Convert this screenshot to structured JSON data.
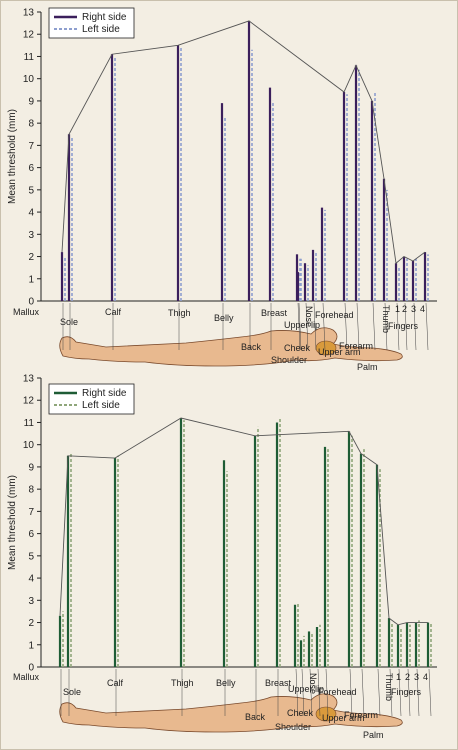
{
  "chart_data": [
    {
      "type": "bar",
      "ylabel": "Mean threshold (mm)",
      "ylim": [
        0,
        13
      ],
      "yticks": [
        0,
        1,
        2,
        3,
        4,
        5,
        6,
        7,
        8,
        9,
        10,
        11,
        12,
        13
      ],
      "grid": false,
      "legend": "top-left",
      "colors": {
        "right": "#3b1f5c",
        "left": "#8e9fcf"
      },
      "series": [
        {
          "name": "Right side",
          "style": "solid"
        },
        {
          "name": "Left side",
          "style": "dashed"
        }
      ],
      "categories": [
        "Mallux",
        "Sole",
        "Calf",
        "Thigh",
        "Belly",
        "Back",
        "Breast",
        "Upper lip",
        "Cheek",
        "Nose",
        "Shoulder",
        "Upper arm",
        "Forehead",
        "Forearm",
        "Palm",
        "Thumb",
        "1",
        "2",
        "3",
        "4"
      ],
      "right_values": [
        2.2,
        7.5,
        11.1,
        11.5,
        8.9,
        12.6,
        9.6,
        2.1,
        1.7,
        2.3,
        1.3,
        4.2,
        9.4,
        10.6,
        9.0,
        5.5,
        1.7,
        2.0,
        1.8,
        2.2
      ],
      "left_values": [
        2.0,
        7.4,
        11.0,
        11.4,
        8.3,
        11.3,
        9.0,
        1.9,
        1.6,
        2.2,
        1.9,
        4.1,
        9.3,
        10.4,
        9.4,
        5.0,
        1.5,
        1.9,
        1.9,
        2.1
      ],
      "labels": {
        "mallux": "Mallux",
        "sole": "Sole",
        "calf": "Calf",
        "thigh": "Thigh",
        "belly": "Belly",
        "breast": "Breast",
        "back": "Back",
        "upper_lip": "Upper lip",
        "nose": "Nose",
        "forehead": "Forehead",
        "cheek": "Cheek",
        "upper_arm": "Upper arm",
        "shoulder": "Shoulder",
        "forearm": "Forearm",
        "palm": "Palm",
        "thumb": "Thumb",
        "fingers": "Fingers",
        "f1": "1",
        "f2": "2",
        "f3": "3",
        "f4": "4"
      }
    },
    {
      "type": "bar",
      "ylabel": "Mean threshold (mm)",
      "ylim": [
        0,
        13
      ],
      "yticks": [
        0,
        1,
        2,
        3,
        4,
        5,
        6,
        7,
        8,
        9,
        10,
        11,
        12,
        13
      ],
      "grid": false,
      "legend": "top-left",
      "colors": {
        "right": "#1e5c35",
        "left": "#8fa67a"
      },
      "series": [
        {
          "name": "Right side",
          "style": "solid"
        },
        {
          "name": "Left side",
          "style": "dashed"
        }
      ],
      "categories": [
        "Mallux",
        "Sole",
        "Calf",
        "Thigh",
        "Belly",
        "Back",
        "Breast",
        "Upper lip",
        "Cheek",
        "Nose",
        "Shoulder",
        "Upper arm",
        "Forehead",
        "Forearm",
        "Palm",
        "Thumb",
        "1",
        "2",
        "3",
        "4"
      ],
      "right_values": [
        2.3,
        9.5,
        9.4,
        11.2,
        9.3,
        10.4,
        11.0,
        1.2,
        1.6,
        1.8,
        2.8,
        9.9,
        10.6,
        9.6,
        9.1,
        2.2,
        1.9,
        2.0,
        2.0,
        2.0
      ],
      "left_values": [
        2.5,
        9.6,
        9.5,
        11.1,
        8.8,
        10.8,
        11.2,
        1.4,
        1.5,
        1.9,
        2.9,
        9.8,
        10.4,
        9.8,
        8.9,
        2.0,
        1.8,
        1.9,
        2.1,
        2.0
      ],
      "labels": {
        "mallux": "Mallux",
        "sole": "Sole",
        "calf": "Calf",
        "thigh": "Thigh",
        "belly": "Belly",
        "breast": "Breast",
        "back": "Back",
        "upper_lip": "Upper lip",
        "nose": "Nose",
        "forehead": "Forehead",
        "cheek": "Cheek",
        "upper_arm": "Upper arm",
        "shoulder": "Shoulder",
        "forearm": "Forearm",
        "palm": "Palm",
        "thumb": "Thumb",
        "fingers": "Fingers",
        "f1": "1",
        "f2": "2",
        "f3": "3",
        "f4": "4"
      }
    }
  ]
}
